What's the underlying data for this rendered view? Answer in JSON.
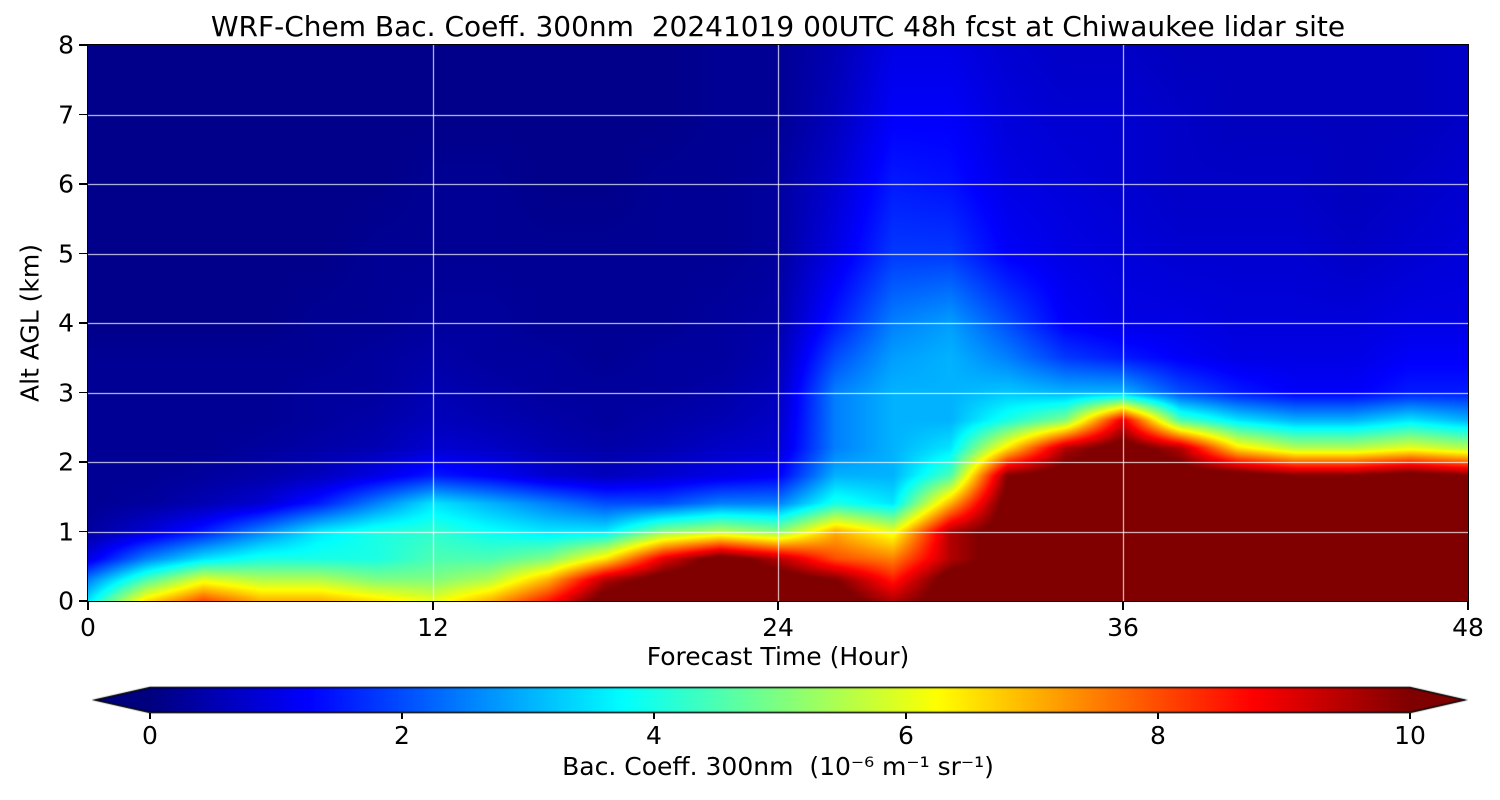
{
  "figure": {
    "title": "WRF-Chem Bac. Coeff. 300nm  20241019 00UTC 48h fcst at Chiwaukee lidar site"
  },
  "chart_data": {
    "type": "heatmap",
    "title": "WRF-Chem Bac. Coeff. 300nm  20241019 00UTC 48h fcst at Chiwaukee lidar site",
    "xlabel": "Forecast Time (Hour)",
    "ylabel": "Alt AGL (km)",
    "xlim": [
      0,
      48
    ],
    "ylim": [
      0,
      8
    ],
    "xticks": [
      0,
      12,
      24,
      36,
      48
    ],
    "yticks": [
      0,
      1,
      2,
      3,
      4,
      5,
      6,
      7,
      8
    ],
    "grid": true,
    "grid_color": "#ffffff",
    "colormap": "jet",
    "colorbar": {
      "label": "Bac. Coeff. 300nm  (10⁻⁶ m⁻¹ sr⁻¹)",
      "vmin": 0,
      "vmax": 10,
      "ticks": [
        0,
        2,
        4,
        6,
        8,
        10
      ],
      "extend": "both"
    },
    "x": [
      0,
      2,
      4,
      6,
      8,
      10,
      12,
      14,
      16,
      18,
      20,
      22,
      24,
      26,
      28,
      30,
      32,
      34,
      36,
      38,
      40,
      42,
      44,
      46,
      48
    ],
    "y": [
      0,
      0.3,
      0.6,
      1.0,
      1.4,
      1.8,
      2.2,
      2.6,
      3.0,
      3.5,
      4.0,
      5.0,
      6.0,
      7.0,
      8.0
    ],
    "values": [
      [
        3.5,
        6.5,
        8.0,
        7.0,
        7.0,
        6.5,
        6.0,
        7.0,
        8.5,
        10.5,
        10.5,
        10.5,
        10.5,
        10.5,
        9.5,
        10.5,
        10.5,
        10.5,
        10.5,
        10.5,
        10.5,
        10.5,
        10.5,
        10.5,
        10.5
      ],
      [
        2.5,
        4.5,
        6.0,
        5.5,
        5.5,
        5.0,
        5.0,
        5.5,
        7.0,
        9.5,
        10.5,
        10.5,
        10.5,
        10.0,
        8.5,
        10.5,
        10.5,
        10.5,
        10.5,
        10.5,
        10.5,
        10.5,
        10.5,
        10.5,
        10.5
      ],
      [
        1.0,
        2.5,
        3.5,
        4.0,
        4.0,
        4.0,
        4.5,
        4.5,
        5.0,
        6.5,
        9.0,
        10.5,
        9.5,
        8.0,
        7.5,
        9.5,
        10.5,
        10.5,
        10.5,
        10.5,
        10.5,
        10.5,
        10.5,
        10.5,
        10.5
      ],
      [
        0.3,
        0.8,
        1.5,
        2.5,
        3.5,
        4.0,
        4.2,
        3.8,
        3.5,
        3.5,
        5.0,
        5.5,
        5.0,
        7.0,
        6.0,
        9.5,
        10.5,
        10.5,
        10.5,
        10.5,
        10.5,
        10.5,
        10.5,
        10.5,
        10.5
      ],
      [
        0.2,
        0.3,
        0.5,
        0.8,
        1.5,
        2.5,
        3.5,
        3.0,
        2.5,
        2.0,
        2.0,
        2.5,
        2.5,
        4.0,
        3.5,
        7.0,
        10.5,
        10.5,
        10.5,
        10.5,
        10.5,
        10.5,
        10.5,
        10.5,
        10.5
      ],
      [
        0.2,
        0.2,
        0.3,
        0.4,
        0.6,
        1.0,
        1.5,
        1.2,
        0.8,
        0.6,
        0.8,
        1.0,
        1.2,
        3.0,
        3.0,
        4.5,
        10.0,
        10.5,
        10.5,
        10.5,
        10.5,
        10.0,
        10.0,
        10.5,
        10.0
      ],
      [
        0.2,
        0.2,
        0.2,
        0.3,
        0.4,
        0.5,
        0.8,
        0.7,
        0.5,
        0.4,
        0.5,
        0.7,
        0.8,
        2.5,
        3.0,
        3.5,
        6.5,
        9.5,
        10.5,
        9.5,
        6.5,
        5.5,
        5.5,
        6.0,
        5.5
      ],
      [
        0.2,
        0.2,
        0.2,
        0.2,
        0.3,
        0.4,
        0.6,
        0.5,
        0.4,
        0.3,
        0.4,
        0.5,
        0.7,
        2.5,
        3.0,
        3.0,
        4.0,
        5.0,
        9.0,
        4.5,
        3.5,
        3.0,
        3.0,
        3.5,
        3.0
      ],
      [
        0.2,
        0.2,
        0.2,
        0.2,
        0.3,
        0.3,
        0.5,
        0.4,
        0.3,
        0.3,
        0.3,
        0.4,
        0.6,
        2.5,
        3.0,
        3.0,
        3.2,
        3.0,
        3.0,
        2.0,
        1.5,
        1.2,
        1.2,
        1.5,
        1.5
      ],
      [
        0.2,
        0.2,
        0.2,
        0.2,
        0.2,
        0.3,
        0.4,
        0.3,
        0.3,
        0.2,
        0.3,
        0.3,
        0.5,
        2.0,
        2.8,
        3.0,
        2.5,
        1.8,
        1.5,
        1.2,
        1.0,
        1.0,
        1.0,
        1.2,
        1.2
      ],
      [
        0.1,
        0.1,
        0.1,
        0.1,
        0.2,
        0.2,
        0.3,
        0.3,
        0.2,
        0.2,
        0.2,
        0.3,
        0.4,
        1.5,
        2.5,
        2.8,
        2.0,
        1.2,
        1.0,
        1.0,
        0.9,
        0.9,
        0.9,
        1.0,
        1.0
      ],
      [
        0.1,
        0.1,
        0.1,
        0.1,
        0.1,
        0.2,
        0.2,
        0.2,
        0.2,
        0.2,
        0.2,
        0.2,
        0.3,
        1.0,
        1.8,
        1.8,
        1.2,
        1.0,
        0.9,
        0.8,
        0.8,
        0.8,
        0.7,
        0.8,
        0.9
      ],
      [
        0.1,
        0.1,
        0.1,
        0.1,
        0.1,
        0.1,
        0.2,
        0.2,
        0.1,
        0.1,
        0.2,
        0.2,
        0.3,
        0.8,
        1.5,
        1.4,
        1.0,
        0.9,
        0.8,
        0.7,
        0.7,
        0.7,
        0.6,
        0.7,
        0.8
      ],
      [
        0.1,
        0.1,
        0.1,
        0.1,
        0.1,
        0.1,
        0.1,
        0.1,
        0.1,
        0.1,
        0.1,
        0.2,
        0.2,
        0.6,
        1.2,
        1.2,
        0.9,
        0.8,
        0.8,
        0.7,
        0.6,
        0.6,
        0.6,
        0.6,
        0.7
      ],
      [
        0.1,
        0.1,
        0.1,
        0.1,
        0.1,
        0.1,
        0.1,
        0.1,
        0.1,
        0.1,
        0.1,
        0.2,
        0.2,
        0.5,
        1.0,
        1.0,
        0.8,
        0.7,
        0.7,
        0.6,
        0.6,
        0.6,
        0.6,
        0.6,
        0.7
      ]
    ]
  }
}
